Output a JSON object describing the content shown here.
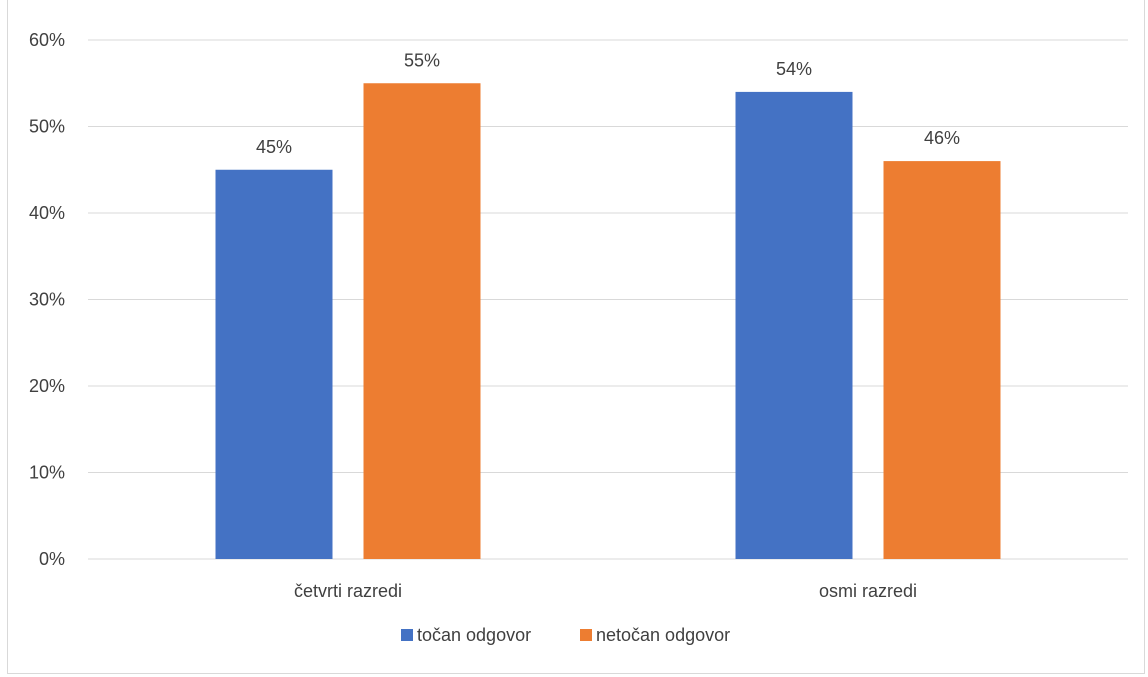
{
  "chart_data": {
    "type": "bar",
    "categories": [
      "četvrti razredi",
      "osmi razredi"
    ],
    "series": [
      {
        "name": "točan odgovor",
        "values": [
          45,
          54
        ],
        "color": "#4472c4"
      },
      {
        "name": "netočan odgovor",
        "values": [
          55,
          46
        ],
        "color": "#ed7d31"
      }
    ],
    "data_labels": [
      [
        "45%",
        "54%"
      ],
      [
        "55%",
        "46%"
      ]
    ],
    "ylim": [
      0,
      60
    ],
    "y_ticks": [
      0,
      10,
      20,
      30,
      40,
      50,
      60
    ],
    "y_tick_labels": [
      "0%",
      "10%",
      "20%",
      "30%",
      "40%",
      "50%",
      "60%"
    ],
    "title": "",
    "xlabel": "",
    "ylabel": "",
    "grid": true,
    "legend_position": "bottom",
    "colors": {
      "gridline": "#d9d9d9",
      "text": "#404040",
      "frame": "#d9d9d9"
    }
  }
}
